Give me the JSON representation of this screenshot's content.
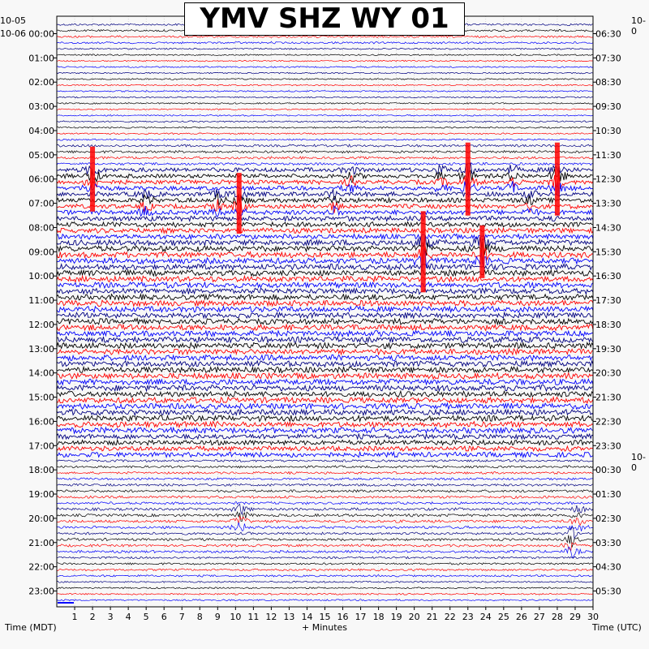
{
  "chart_data": {
    "type": "helicorder",
    "title": "YMV SHZ WY 01",
    "xlabel": "+ Minutes",
    "left_axis_title": "Time (MDT)",
    "right_axis_title": "Time (UTC)",
    "x_ticks": [
      "1",
      "2",
      "3",
      "4",
      "5",
      "6",
      "7",
      "8",
      "9",
      "10",
      "11",
      "12",
      "13",
      "14",
      "15",
      "16",
      "17",
      "18",
      "19",
      "20",
      "21",
      "22",
      "23",
      "24",
      "25",
      "26",
      "27",
      "28",
      "29",
      "30"
    ],
    "x_range": [
      0,
      30
    ],
    "left_date_labels": [
      "10-05",
      "10-06"
    ],
    "right_date_labels": [
      "10-0"
    ],
    "left_time_labels": [
      "00:00",
      "01:00",
      "02:00",
      "03:00",
      "04:00",
      "05:00",
      "06:00",
      "07:00",
      "08:00",
      "09:00",
      "10:00",
      "11:00",
      "12:00",
      "13:00",
      "14:00",
      "15:00",
      "16:00",
      "17:00",
      "18:00",
      "19:00",
      "20:00",
      "21:00",
      "22:00",
      "23:00"
    ],
    "right_time_labels": [
      "06:30",
      "07:30",
      "08:30",
      "09:30",
      "10:30",
      "11:30",
      "12:30",
      "13:30",
      "14:30",
      "15:30",
      "16:30",
      "17:30",
      "18:30",
      "19:30",
      "20:30",
      "21:30",
      "22:30",
      "23:30",
      "00:30",
      "01:30",
      "02:30",
      "03:30",
      "04:30",
      "05:30"
    ],
    "trace_colors": [
      "#000080",
      "#000000",
      "#ff0000",
      "#0000ff"
    ],
    "clip_color": "#ff0000",
    "hour_activity": [
      0.25,
      0.12,
      0.12,
      0.12,
      0.14,
      0.35,
      0.7,
      0.75,
      0.85,
      1.0,
      1.0,
      1.0,
      1.0,
      1.0,
      1.0,
      1.0,
      1.0,
      0.85,
      0.3,
      0.35,
      0.4,
      0.35,
      0.25,
      0.15
    ],
    "events": [
      {
        "hour": 6,
        "minute": 2,
        "amp": 1.6,
        "clip": true
      },
      {
        "hour": 6,
        "minute": 16.5,
        "amp": 0.9,
        "clip": false
      },
      {
        "hour": 6,
        "minute": 21.5,
        "amp": 0.8,
        "clip": false
      },
      {
        "hour": 6,
        "minute": 23,
        "amp": 1.8,
        "clip": true
      },
      {
        "hour": 6,
        "minute": 25.5,
        "amp": 1.0,
        "clip": false
      },
      {
        "hour": 6,
        "minute": 28,
        "amp": 1.8,
        "clip": true
      },
      {
        "hour": 7,
        "minute": 5,
        "amp": 1.0,
        "clip": false
      },
      {
        "hour": 7,
        "minute": 9,
        "amp": 0.9,
        "clip": false
      },
      {
        "hour": 7,
        "minute": 10.2,
        "amp": 1.5,
        "clip": true
      },
      {
        "hour": 7,
        "minute": 15.5,
        "amp": 0.9,
        "clip": false
      },
      {
        "hour": 7,
        "minute": 26.5,
        "amp": 0.8,
        "clip": false
      },
      {
        "hour": 9,
        "minute": 20.5,
        "amp": 2.0,
        "clip": true
      },
      {
        "hour": 9,
        "minute": 23.8,
        "amp": 1.3,
        "clip": true
      },
      {
        "hour": 20,
        "minute": 10.3,
        "amp": 1.2,
        "clip": false
      },
      {
        "hour": 20,
        "minute": 29.2,
        "amp": 1.0,
        "clip": false
      },
      {
        "hour": 21,
        "minute": 28.8,
        "amp": 1.3,
        "clip": false
      }
    ]
  }
}
